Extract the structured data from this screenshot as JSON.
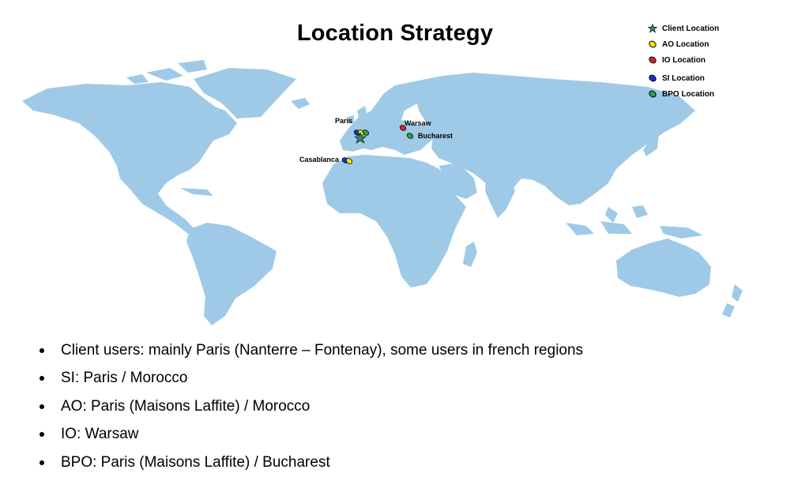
{
  "title": "Location Strategy",
  "legend": [
    {
      "label": "Client Location",
      "icon": "star-icon",
      "color": "#2e8b57"
    },
    {
      "label": "AO Location",
      "icon": "pin-icon",
      "color": "#f2e600"
    },
    {
      "label": "IO Location",
      "icon": "pin-icon",
      "color": "#e02020"
    },
    {
      "label": "SI Location",
      "icon": "pin-icon",
      "color": "#1a2edb"
    },
    {
      "label": "BPO Location",
      "icon": "pin-icon",
      "color": "#2ea043"
    }
  ],
  "cities": {
    "paris": "Paris",
    "warsaw": "Warsaw",
    "bucharest": "Bucharest",
    "casablanca": "Casablanca"
  },
  "bullets": [
    "Client users: mainly Paris (Nanterre – Fontenay), some users in french regions",
    "SI: Paris / Morocco",
    "AO: Paris (Maisons Laffite) / Morocco",
    "IO: Warsaw",
    "BPO: Paris (Maisons Laffite) / Bucharest"
  ],
  "colors": {
    "land": "#9ecae8",
    "background": "#ffffff"
  }
}
